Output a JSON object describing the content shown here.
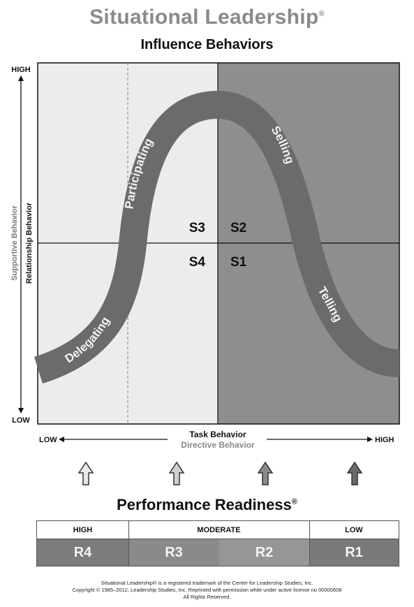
{
  "header": {
    "title": "Situational Leadership",
    "title_mark": "®",
    "subtitle": "Influence Behaviors"
  },
  "axes": {
    "y_high": "HIGH",
    "y_low": "LOW",
    "y_label_primary": "Relationship Behavior",
    "y_label_secondary": "Supportive Behavior",
    "x_low": "LOW",
    "x_high": "HIGH",
    "x_label_primary": "Task Behavior",
    "x_label_secondary": "Directive Behavior"
  },
  "quadrants": {
    "s3": "S3",
    "s2": "S2",
    "s4": "S4",
    "s1": "S1"
  },
  "curve_labels": {
    "participating": "Participating",
    "selling": "Selling",
    "delegating": "Delegating",
    "telling": "Telling"
  },
  "readiness": {
    "title": "Performance Readiness",
    "title_mark": "®",
    "headers": [
      "HIGH",
      "MODERATE",
      "LOW"
    ],
    "levels": [
      "R4",
      "R3",
      "R2",
      "R1"
    ]
  },
  "footer": {
    "line1": "Situational Leadership® is a registered trademark of the Center for Leadership Studies, Inc.",
    "line2": "Copyright © 1985–2012, Leadership Studies, Inc. Reprinted with permission while under active license no 00000608",
    "line3": "All Rights Reserved."
  },
  "colors": {
    "title_gray": "#8a8a8a",
    "left_quadrants": "#ededed",
    "right_quadrants": "#8f8f8f",
    "curve": "#6a6a6a",
    "readiness_cells": "#7a7a7a"
  }
}
